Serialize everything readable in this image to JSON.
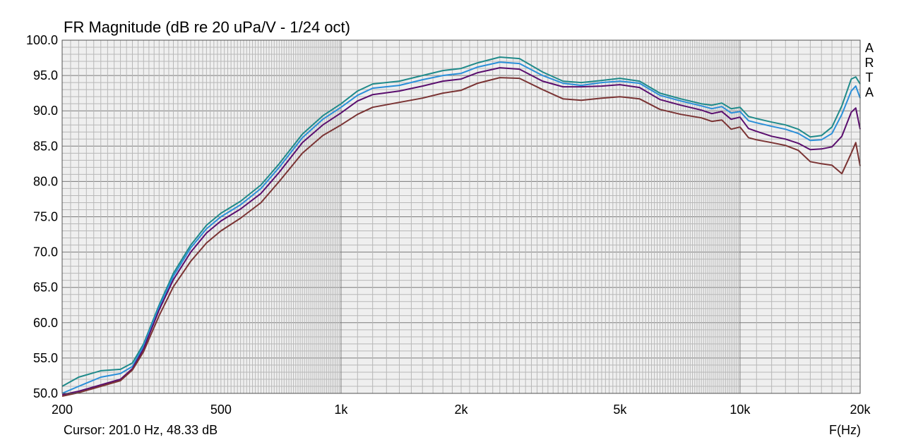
{
  "chart_data": {
    "type": "line",
    "title": "FR Magnitude (dB re 20 uPa/V - 1/24 oct)",
    "xlabel": "F(Hz)",
    "ylabel": "",
    "x_scale": "log",
    "xlim": [
      200,
      20000
    ],
    "ylim": [
      50,
      100
    ],
    "grid": true,
    "x_ticks": [
      200,
      500,
      1000,
      2000,
      5000,
      10000,
      20000
    ],
    "x_tick_labels": [
      "200",
      "500",
      "1k",
      "2k",
      "5k",
      "10k",
      "20k"
    ],
    "y_ticks": [
      50,
      55,
      60,
      65,
      70,
      75,
      80,
      85,
      90,
      95,
      100
    ],
    "y_tick_labels": [
      "50.0",
      "55.0",
      "60.0",
      "65.0",
      "70.0",
      "75.0",
      "80.0",
      "85.0",
      "90.0",
      "95.0",
      "100.0"
    ],
    "x": [
      200,
      220,
      250,
      280,
      300,
      320,
      350,
      380,
      420,
      460,
      500,
      560,
      630,
      700,
      800,
      900,
      1000,
      1100,
      1200,
      1400,
      1600,
      1800,
      2000,
      2200,
      2500,
      2800,
      3200,
      3600,
      4000,
      4500,
      5000,
      5600,
      6300,
      7100,
      8000,
      8500,
      9000,
      9500,
      10000,
      10500,
      11000,
      12000,
      13000,
      14000,
      15000,
      16000,
      17000,
      18000,
      19000,
      19500,
      20000
    ],
    "series": [
      {
        "color": "#1f8a8a",
        "values": [
          51.0,
          52.3,
          53.2,
          53.4,
          54.3,
          57.0,
          62.5,
          67.0,
          71.0,
          73.8,
          75.5,
          77.2,
          79.5,
          82.5,
          86.7,
          89.3,
          91.0,
          92.8,
          93.8,
          94.2,
          95.0,
          95.7,
          96.0,
          96.8,
          97.6,
          97.4,
          95.5,
          94.2,
          94.0,
          94.3,
          94.6,
          94.2,
          92.5,
          91.7,
          91.0,
          90.8,
          91.1,
          90.3,
          90.5,
          89.2,
          88.9,
          88.4,
          88.0,
          87.4,
          86.3,
          86.5,
          87.7,
          90.7,
          94.5,
          94.8,
          93.8
        ]
      },
      {
        "color": "#2a8fd9",
        "values": [
          50.0,
          51.0,
          52.3,
          52.8,
          53.8,
          56.7,
          62.2,
          66.6,
          70.6,
          73.3,
          75.0,
          76.7,
          79.0,
          82.0,
          86.2,
          88.8,
          90.5,
          92.2,
          93.2,
          93.6,
          94.4,
          95.0,
          95.3,
          96.2,
          96.9,
          96.7,
          95.0,
          93.9,
          93.6,
          94.0,
          94.2,
          93.9,
          92.2,
          91.4,
          90.7,
          90.3,
          90.6,
          89.7,
          89.9,
          88.6,
          88.3,
          87.8,
          87.4,
          86.8,
          85.8,
          85.9,
          86.8,
          89.5,
          92.8,
          93.5,
          91.8
        ]
      },
      {
        "color": "#5a0e6e",
        "values": [
          49.8,
          50.3,
          51.2,
          52.0,
          53.5,
          56.3,
          61.8,
          66.1,
          70.0,
          72.7,
          74.4,
          76.1,
          78.3,
          81.3,
          85.5,
          88.0,
          89.7,
          91.4,
          92.3,
          92.8,
          93.5,
          94.2,
          94.5,
          95.4,
          96.1,
          95.9,
          94.2,
          93.4,
          93.4,
          93.5,
          93.7,
          93.3,
          91.6,
          90.8,
          90.1,
          89.6,
          89.9,
          88.8,
          89.1,
          87.5,
          87.1,
          86.4,
          86.0,
          85.4,
          84.5,
          84.6,
          84.9,
          86.4,
          89.8,
          90.4,
          87.4
        ]
      },
      {
        "color": "#7a3333",
        "values": [
          49.6,
          50.1,
          51.0,
          51.8,
          53.3,
          55.9,
          61.0,
          65.1,
          68.7,
          71.3,
          73.0,
          74.8,
          77.0,
          80.0,
          84.0,
          86.5,
          88.0,
          89.5,
          90.5,
          91.2,
          91.8,
          92.5,
          92.9,
          93.9,
          94.7,
          94.6,
          93.0,
          91.7,
          91.5,
          91.8,
          92.0,
          91.7,
          90.2,
          89.5,
          89.0,
          88.5,
          88.7,
          87.4,
          87.7,
          86.2,
          85.9,
          85.5,
          85.1,
          84.4,
          82.8,
          82.5,
          82.3,
          81.1,
          84.0,
          85.5,
          82.2
        ]
      }
    ]
  },
  "header": {
    "title": "FR Magnitude (dB re 20 uPa/V - 1/24 oct)"
  },
  "footer": {
    "cursor": "Cursor: 201.0 Hz, 48.33 dB",
    "axis_unit": "F(Hz)"
  },
  "brand": {
    "letters": [
      "A",
      "R",
      "T",
      "A"
    ]
  },
  "colors": {
    "plot_bg": "#efefef",
    "grid_minor": "#b8b8b8",
    "grid_major": "#7a7a7a"
  }
}
